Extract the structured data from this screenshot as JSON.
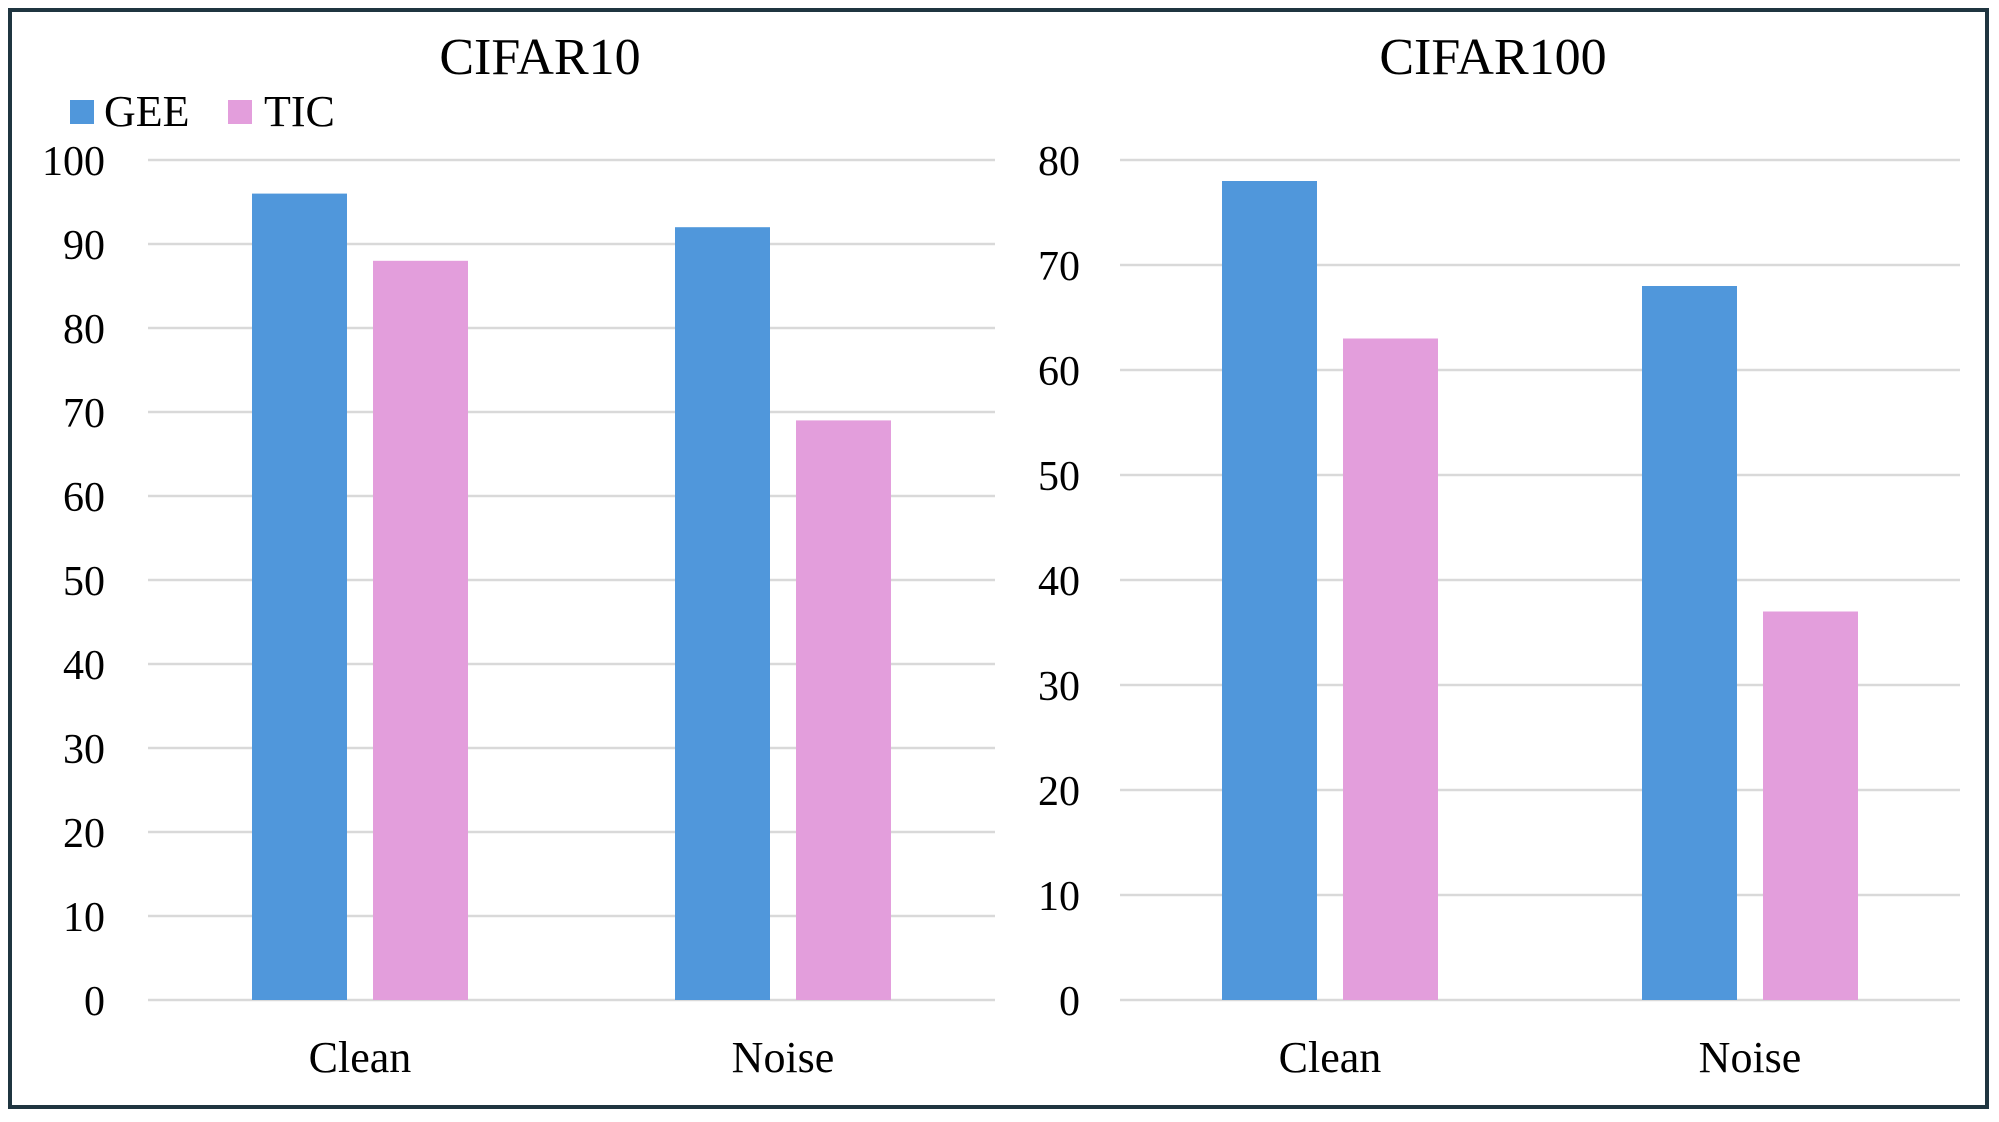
{
  "colors": {
    "frame": "#1f3540",
    "grid": "#d9d9d9",
    "series": {
      "GEE": "#5097db",
      "TIC": "#e39edc"
    }
  },
  "legend": {
    "placement": "top-left",
    "items": [
      {
        "label": "GEE",
        "color": "#5097db"
      },
      {
        "label": "TIC",
        "color": "#e39edc"
      }
    ]
  },
  "chart_data": [
    {
      "type": "bar",
      "title": "CIFAR10",
      "categories": [
        "Clean",
        "Noise"
      ],
      "series": [
        {
          "name": "GEE",
          "values": [
            96,
            92
          ]
        },
        {
          "name": "TIC",
          "values": [
            88,
            69
          ]
        }
      ],
      "ylim": [
        0,
        100
      ],
      "yticks": [
        "0",
        "10",
        "20",
        "30",
        "40",
        "50",
        "60",
        "70",
        "80",
        "90",
        "100"
      ],
      "xlabel": "",
      "ylabel": "",
      "grid": true,
      "legend": true
    },
    {
      "type": "bar",
      "title": "CIFAR100",
      "categories": [
        "Clean",
        "Noise"
      ],
      "series": [
        {
          "name": "GEE",
          "values": [
            78,
            68
          ]
        },
        {
          "name": "TIC",
          "values": [
            63,
            37
          ]
        }
      ],
      "ylim": [
        0,
        80
      ],
      "yticks": [
        "0",
        "10",
        "20",
        "30",
        "40",
        "50",
        "60",
        "70",
        "80"
      ],
      "xlabel": "",
      "ylabel": "",
      "grid": true,
      "legend": false
    }
  ]
}
